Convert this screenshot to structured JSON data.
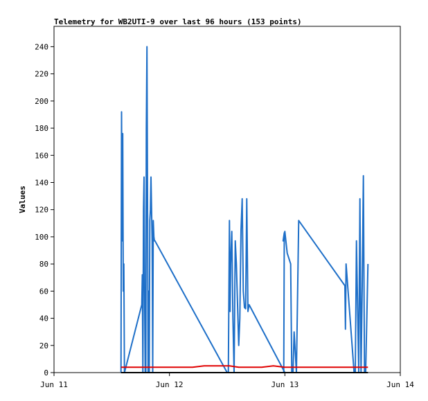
{
  "chart_data": {
    "type": "line",
    "title": "Telemetry for WB2UTI-9 over last 96 hours (153 points)",
    "ylabel": "Values",
    "xlabel": "",
    "ylim": [
      0,
      255
    ],
    "yticks": [
      0,
      20,
      40,
      60,
      80,
      100,
      120,
      140,
      160,
      180,
      200,
      220,
      240
    ],
    "xlim": [
      0,
      3
    ],
    "xticks": [
      {
        "label": "Jun 11",
        "value": 0
      },
      {
        "label": "Jun 12",
        "value": 1
      },
      {
        "label": "Jun 13",
        "value": 2
      },
      {
        "label": "Jun 14",
        "value": 3
      }
    ],
    "grid": false,
    "series": [
      {
        "color": "#1e6fc8",
        "x": [
          0.58,
          0.585,
          0.59,
          0.595,
          0.6,
          0.605,
          0.61,
          0.76,
          0.765,
          0.77,
          0.775,
          0.78,
          0.785,
          0.79,
          0.795,
          0.8,
          0.805,
          0.81,
          0.815,
          0.82,
          0.825,
          0.83,
          0.835,
          0.84,
          0.85,
          0.855,
          0.86,
          0.865,
          0.87,
          0.875,
          1.5,
          1.51,
          1.52,
          1.525,
          1.53,
          1.54,
          1.55,
          1.56,
          1.57,
          1.58,
          1.6,
          1.61,
          1.62,
          1.63,
          1.64,
          1.65,
          1.66,
          1.67,
          1.68,
          1.69,
          2.0,
          1.99,
          1.995,
          1.985,
          2.0,
          2.02,
          2.05,
          2.06,
          2.07,
          2.08,
          2.1,
          2.12,
          2.52,
          2.525,
          2.53,
          2.6,
          2.61,
          2.62,
          2.63,
          2.64,
          2.65,
          2.66,
          2.67,
          2.68,
          2.69,
          2.7,
          2.72
        ],
        "y": [
          0,
          192,
          97,
          176,
          60,
          80,
          0,
          50,
          72,
          0,
          120,
          144,
          60,
          0,
          0,
          180,
          240,
          128,
          0,
          60,
          0,
          112,
          120,
          144,
          96,
          0,
          112,
          100,
          97,
          97,
          0,
          0,
          112,
          45,
          80,
          104,
          40,
          0,
          97,
          80,
          20,
          40,
          105,
          128,
          60,
          48,
          47,
          128,
          45,
          50,
          0,
          0,
          103,
          97,
          104,
          88,
          80,
          0,
          0,
          30,
          0,
          112,
          64,
          32,
          80,
          0,
          0,
          97,
          50,
          0,
          128,
          0,
          64,
          145,
          0,
          0,
          80
        ]
      },
      {
        "color": "#e00000",
        "x": [
          0.58,
          0.8,
          1.0,
          1.2,
          1.3,
          1.52,
          1.6,
          1.8,
          1.9,
          2.0,
          2.2,
          2.72
        ],
        "y": [
          4,
          4,
          4,
          4,
          5,
          5,
          4,
          4,
          5,
          4,
          4,
          4
        ]
      },
      {
        "color": "#000000",
        "x": [
          0.58,
          2.72
        ],
        "y": [
          0,
          0
        ]
      }
    ]
  }
}
